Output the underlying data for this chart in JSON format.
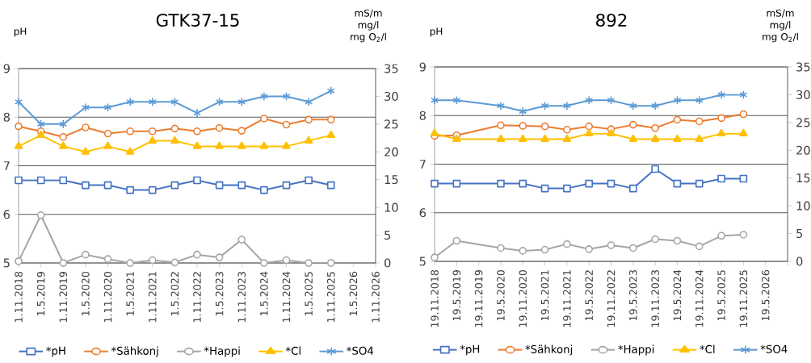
{
  "chart_data": [
    {
      "type": "line",
      "title": "GTK37-15",
      "ylabel": "pH",
      "y2label": "mS/m mg/l mg O$_{2}$/l",
      "x": [
        "2018-11-01",
        "2019-05-01",
        "2019-11-01",
        "2020-05-01",
        "2020-11-01",
        "2021-05-01",
        "2021-11-01",
        "2022-05-01",
        "2022-11-01",
        "2023-05-01",
        "2023-11-01",
        "2024-05-01",
        "2024-11-01",
        "2025-05-01",
        "2025-11-01"
      ],
      "xlim": [
        "2018-11-01",
        "2026-11-01"
      ],
      "xticks": [
        {
          "value": "2018-11-01",
          "label": "1.11.2018"
        },
        {
          "value": "2019-05-01",
          "label": "1.5.2019"
        },
        {
          "value": "2019-11-01",
          "label": "1.11.2019"
        },
        {
          "value": "2020-05-01",
          "label": "1.5.2020"
        },
        {
          "value": "2020-11-01",
          "label": "1.11.2020"
        },
        {
          "value": "2021-05-01",
          "label": "1.5.2021"
        },
        {
          "value": "2021-11-01",
          "label": "1.11.2021"
        },
        {
          "value": "2022-05-01",
          "label": "1.5.2022"
        },
        {
          "value": "2022-11-01",
          "label": "1.11.2022"
        },
        {
          "value": "2023-05-01",
          "label": "1.5.2023"
        },
        {
          "value": "2023-11-01",
          "label": "1.11.2023"
        },
        {
          "value": "2024-05-01",
          "label": "1.5.2024"
        },
        {
          "value": "2024-11-01",
          "label": "1.11.2024"
        },
        {
          "value": "2025-05-01",
          "label": "1.5.2025"
        },
        {
          "value": "2025-11-01",
          "label": "1.11.2025"
        },
        {
          "value": "2026-05-01",
          "label": "1.5.2026"
        },
        {
          "value": "2026-11-01",
          "label": "1.11.2026"
        }
      ],
      "ylim": [
        5,
        9
      ],
      "yticks": [
        5,
        6,
        7,
        8,
        9
      ],
      "y2lim": [
        0,
        35
      ],
      "y2ticks": [
        0,
        5,
        10,
        15,
        20,
        25,
        30,
        35
      ],
      "grid": "y",
      "legend": "bottom",
      "series": [
        {
          "name": "*pH",
          "color": "#4472c4",
          "marker": "square",
          "values": [
            6.7,
            6.7,
            6.7,
            6.6,
            6.6,
            6.5,
            6.5,
            6.6,
            6.7,
            6.6,
            6.6,
            6.5,
            6.6,
            6.7,
            6.6
          ]
        },
        {
          "name": "*Sähkonj",
          "color": "#ed7d31",
          "marker": "circle",
          "axis": "y2",
          "values": [
            24.6,
            23.7,
            22.7,
            24.4,
            23.3,
            23.7,
            23.7,
            24.2,
            23.7,
            24.3,
            23.8,
            26.0,
            24.9,
            25.8,
            25.8
          ]
        },
        {
          "name": "*Happi",
          "color": "#a5a5a5",
          "marker": "circle",
          "axis": "y2",
          "values": [
            0.3,
            8.6,
            0,
            1.5,
            0.7,
            0,
            0.5,
            0.1,
            1.5,
            1.0,
            4.2,
            0,
            0.5,
            0,
            0
          ]
        },
        {
          "name": "*Cl",
          "color": "#ffc000",
          "marker": "triangle",
          "axis": "y2",
          "values": [
            21,
            23,
            21,
            20,
            21,
            20,
            22,
            22,
            21,
            21,
            21,
            21,
            21,
            22,
            23
          ]
        },
        {
          "name": "*SO4",
          "color": "#5b9bd5",
          "marker": "cross",
          "axis": "y2",
          "values": [
            29,
            25,
            25,
            28,
            28,
            29,
            29,
            29,
            27,
            29,
            29,
            30,
            30,
            29,
            31
          ]
        }
      ]
    },
    {
      "type": "line",
      "title": "892",
      "ylabel": "pH",
      "y2label": "mS/m mg/l mg O$_{2}$/l",
      "x": [
        "2018-11-19",
        "2019-05-19",
        "2020-05-19",
        "2020-11-19",
        "2021-05-19",
        "2021-11-19",
        "2022-05-19",
        "2022-11-19",
        "2023-05-19",
        "2023-11-19",
        "2024-05-19",
        "2024-11-19",
        "2025-05-19",
        "2025-11-19"
      ],
      "xlim": [
        "2018-11-19",
        "2026-11-19"
      ],
      "xticks": [
        {
          "value": "2018-11-19",
          "label": "19.11.2018"
        },
        {
          "value": "2019-05-19",
          "label": "19.5.2019"
        },
        {
          "value": "2019-11-19",
          "label": "19.11.2019"
        },
        {
          "value": "2020-05-19",
          "label": "19.5.2020"
        },
        {
          "value": "2020-11-19",
          "label": "19.11.2020"
        },
        {
          "value": "2021-05-19",
          "label": "19.5.2021"
        },
        {
          "value": "2021-11-19",
          "label": "19.11.2021"
        },
        {
          "value": "2022-05-19",
          "label": "19.5.2022"
        },
        {
          "value": "2022-11-19",
          "label": "19.11.2022"
        },
        {
          "value": "2023-05-19",
          "label": "19.5.2023"
        },
        {
          "value": "2023-11-19",
          "label": "19.11.2023"
        },
        {
          "value": "2024-05-19",
          "label": "19.5.2024"
        },
        {
          "value": "2024-11-19",
          "label": "19.11.2024"
        },
        {
          "value": "2025-05-19",
          "label": "19.5.2025"
        },
        {
          "value": "2025-11-19",
          "label": "19.11.2025"
        },
        {
          "value": "2026-05-19",
          "label": "19.5.2026"
        },
        {
          "value": "2026-11-19",
          "label": null
        }
      ],
      "ylim": [
        5,
        9
      ],
      "yticks": [
        5,
        6,
        7,
        8,
        9
      ],
      "y2lim": [
        0,
        35
      ],
      "y2ticks": [
        0,
        5,
        10,
        15,
        20,
        25,
        30,
        35
      ],
      "grid": "y",
      "legend": "bottom",
      "series": [
        {
          "name": "*pH",
          "color": "#4472c4",
          "marker": "square",
          "values": [
            6.6,
            6.6,
            6.6,
            6.6,
            6.5,
            6.5,
            6.6,
            6.6,
            6.5,
            6.9,
            6.6,
            6.6,
            6.7,
            6.7
          ]
        },
        {
          "name": "*Sähkonj",
          "color": "#ed7d31",
          "marker": "circle",
          "axis": "y2",
          "values": [
            22.6,
            22.7,
            24.5,
            24.4,
            24.3,
            23.7,
            24.3,
            23.8,
            24.6,
            24.0,
            25.5,
            25.2,
            25.8,
            26.5
          ]
        },
        {
          "name": "*Happi",
          "color": "#a5a5a5",
          "marker": "circle",
          "axis": "y2",
          "values": [
            0.7,
            3.7,
            2.4,
            1.9,
            2.1,
            3.1,
            2.2,
            2.9,
            2.4,
            4.0,
            3.7,
            2.7,
            4.6,
            4.8
          ]
        },
        {
          "name": "*Cl",
          "color": "#ffc000",
          "marker": "triangle",
          "axis": "y2",
          "values": [
            23,
            22,
            22,
            22,
            22,
            22,
            23,
            23,
            22,
            22,
            22,
            22,
            23,
            23
          ]
        },
        {
          "name": "*SO4",
          "color": "#5b9bd5",
          "marker": "cross",
          "axis": "y2",
          "values": [
            29,
            29,
            28,
            27,
            28,
            28,
            29,
            29,
            28,
            28,
            29,
            29,
            30,
            30
          ]
        }
      ]
    }
  ]
}
